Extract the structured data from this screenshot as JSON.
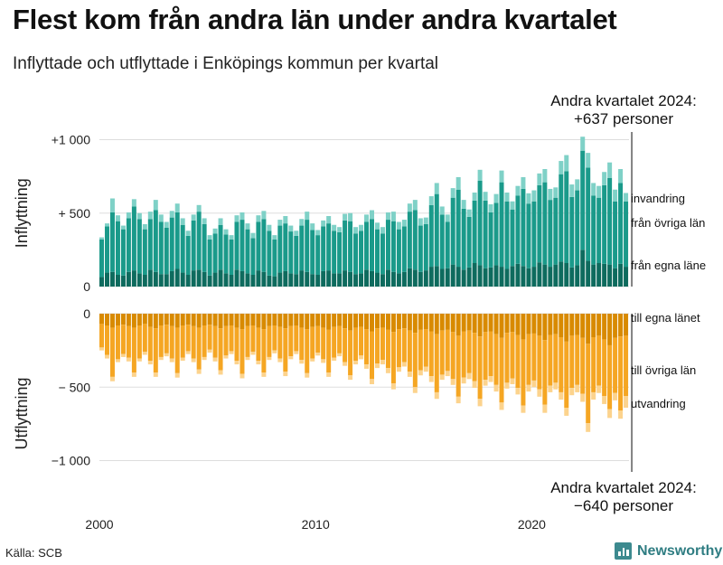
{
  "title": "Flest kom från andra län under andra kvartalet",
  "subtitle": "Inflyttade och utflyttade i Enköpings kommun per kvartal",
  "source": "Källa: SCB",
  "brand": "Newsworthy",
  "colors": {
    "in_egna": "#0e6b5e",
    "in_ovriga": "#1a9a8a",
    "in_invandring": "#7fd1c7",
    "ut_egna": "#d88a00",
    "ut_ovriga": "#f5a623",
    "ut_utvandring": "#fcd38d",
    "grid": "#dddddd",
    "brand": "#2f7d82"
  },
  "chart_data": [
    {
      "type": "bar",
      "stacked": true,
      "panel": "top",
      "ylabel": "Inflyttning",
      "ylim": [
        0,
        1020
      ],
      "yticks": [
        0,
        500,
        1000
      ],
      "ytick_labels": [
        "0",
        "+  500",
        "+1 000"
      ],
      "xticks": [
        2000,
        2010,
        2020
      ],
      "xtick_labels": [
        "2000",
        "2010",
        "2020"
      ],
      "period": "2000 Q1 – 2024 Q2 (98 kvartal)",
      "series": [
        {
          "name": "från egna läne",
          "values": [
            65,
            95,
            100,
            80,
            75,
            100,
            110,
            90,
            80,
            115,
            100,
            85,
            85,
            105,
            120,
            95,
            80,
            110,
            115,
            100,
            75,
            95,
            115,
            90,
            80,
            115,
            105,
            90,
            80,
            110,
            100,
            75,
            70,
            95,
            105,
            90,
            85,
            110,
            100,
            85,
            80,
            105,
            110,
            90,
            90,
            110,
            100,
            85,
            90,
            115,
            105,
            95,
            85,
            115,
            100,
            90,
            100,
            125,
            115,
            100,
            110,
            135,
            140,
            120,
            125,
            150,
            135,
            115,
            130,
            160,
            145,
            125,
            130,
            145,
            135,
            120,
            140,
            155,
            140,
            125,
            135,
            165,
            150,
            135,
            150,
            170,
            160,
            130,
            145,
            250,
            175,
            150,
            160,
            155,
            150,
            125,
            155,
            135
          ]
        },
        {
          "name": "från övriga län",
          "values": [
            255,
            315,
            405,
            365,
            315,
            365,
            435,
            370,
            310,
            345,
            420,
            355,
            315,
            365,
            385,
            325,
            265,
            340,
            395,
            325,
            245,
            265,
            305,
            265,
            240,
            325,
            350,
            300,
            250,
            330,
            360,
            305,
            250,
            320,
            325,
            285,
            260,
            305,
            355,
            300,
            270,
            305,
            320,
            290,
            280,
            340,
            345,
            275,
            290,
            325,
            355,
            295,
            275,
            340,
            345,
            300,
            310,
            385,
            405,
            315,
            315,
            420,
            490,
            370,
            315,
            455,
            525,
            415,
            345,
            425,
            575,
            460,
            375,
            425,
            575,
            460,
            385,
            465,
            525,
            440,
            445,
            525,
            560,
            455,
            455,
            595,
            625,
            480,
            510,
            675,
            635,
            470,
            445,
            535,
            590,
            455,
            550,
            445
          ]
        },
        {
          "name": "invandring",
          "values": [
            15,
            20,
            95,
            40,
            25,
            40,
            50,
            40,
            35,
            50,
            70,
            50,
            40,
            45,
            60,
            45,
            35,
            40,
            45,
            40,
            30,
            35,
            45,
            35,
            30,
            45,
            50,
            40,
            35,
            45,
            55,
            40,
            30,
            40,
            50,
            40,
            35,
            45,
            55,
            45,
            35,
            40,
            50,
            40,
            35,
            45,
            55,
            45,
            40,
            50,
            60,
            45,
            45,
            50,
            65,
            50,
            45,
            55,
            70,
            50,
            45,
            60,
            75,
            55,
            50,
            65,
            85,
            60,
            50,
            55,
            75,
            60,
            55,
            60,
            80,
            60,
            55,
            65,
            80,
            70,
            75,
            80,
            90,
            75,
            70,
            90,
            110,
            85,
            75,
            95,
            100,
            85,
            80,
            90,
            105,
            80,
            95,
            57
          ]
        }
      ],
      "annotation": {
        "line1": "Andra kvartalet 2024:",
        "line2": "+637 personer"
      },
      "legend": [
        "invandring",
        "från övriga län",
        "från egna läne"
      ]
    },
    {
      "type": "bar",
      "stacked": true,
      "panel": "bottom",
      "ylabel": "Utflyttning",
      "ylim": [
        -1000,
        0
      ],
      "yticks": [
        0,
        -500,
        -1000
      ],
      "ytick_labels": [
        "0",
        "−  500",
        "−1 000"
      ],
      "series": [
        {
          "name": "till egna länet",
          "values": [
            -70,
            -80,
            -95,
            -80,
            -75,
            -85,
            -95,
            -80,
            -70,
            -90,
            -100,
            -80,
            -75,
            -85,
            -95,
            -80,
            -75,
            -85,
            -95,
            -80,
            -75,
            -85,
            -100,
            -85,
            -80,
            -95,
            -105,
            -85,
            -80,
            -95,
            -105,
            -85,
            -80,
            -90,
            -100,
            -85,
            -80,
            -95,
            -105,
            -90,
            -85,
            -95,
            -110,
            -90,
            -85,
            -100,
            -115,
            -95,
            -90,
            -105,
            -120,
            -100,
            -95,
            -110,
            -125,
            -105,
            -100,
            -115,
            -130,
            -110,
            -105,
            -120,
            -140,
            -115,
            -110,
            -125,
            -150,
            -120,
            -115,
            -130,
            -155,
            -125,
            -120,
            -140,
            -165,
            -130,
            -125,
            -145,
            -175,
            -140,
            -135,
            -150,
            -180,
            -145,
            -140,
            -160,
            -190,
            -150,
            -145,
            -165,
            -205,
            -160,
            -150,
            -175,
            -215,
            -165,
            -155,
            -150
          ]
        },
        {
          "name": "till övriga län",
          "values": [
            -160,
            -200,
            -335,
            -230,
            -200,
            -215,
            -305,
            -225,
            -190,
            -230,
            -300,
            -215,
            -195,
            -220,
            -310,
            -220,
            -180,
            -220,
            -285,
            -215,
            -170,
            -215,
            -285,
            -200,
            -175,
            -225,
            -305,
            -210,
            -180,
            -225,
            -295,
            -210,
            -170,
            -215,
            -295,
            -205,
            -175,
            -220,
            -300,
            -215,
            -180,
            -215,
            -290,
            -210,
            -185,
            -230,
            -305,
            -225,
            -195,
            -240,
            -325,
            -240,
            -220,
            -260,
            -350,
            -260,
            -230,
            -280,
            -370,
            -275,
            -255,
            -305,
            -395,
            -300,
            -280,
            -320,
            -415,
            -315,
            -290,
            -330,
            -425,
            -325,
            -305,
            -345,
            -440,
            -340,
            -315,
            -360,
            -450,
            -345,
            -320,
            -365,
            -440,
            -345,
            -330,
            -375,
            -450,
            -355,
            -340,
            -380,
            -540,
            -375,
            -340,
            -385,
            -435,
            -375,
            -505,
            -410
          ]
        },
        {
          "name": "utvandring",
          "values": [
            -20,
            -25,
            -30,
            -20,
            -20,
            -25,
            -30,
            -20,
            -20,
            -25,
            -30,
            -20,
            -20,
            -25,
            -30,
            -20,
            -20,
            -25,
            -30,
            -20,
            -20,
            -25,
            -30,
            -20,
            -20,
            -25,
            -30,
            -20,
            -20,
            -25,
            -30,
            -20,
            -20,
            -25,
            -30,
            -20,
            -20,
            -25,
            -30,
            -20,
            -20,
            -25,
            -30,
            -20,
            -20,
            -25,
            -30,
            -25,
            -25,
            -30,
            -35,
            -30,
            -30,
            -35,
            -40,
            -30,
            -30,
            -35,
            -40,
            -35,
            -35,
            -40,
            -45,
            -35,
            -35,
            -40,
            -45,
            -40,
            -40,
            -45,
            -50,
            -40,
            -40,
            -45,
            -50,
            -40,
            -40,
            -45,
            -50,
            -45,
            -45,
            -50,
            -55,
            -45,
            -45,
            -50,
            -55,
            -50,
            -50,
            -55,
            -60,
            -50,
            -50,
            -55,
            -60,
            -50,
            -55,
            -80
          ]
        }
      ],
      "annotation": {
        "line1": "Andra kvartalet 2024:",
        "line2": "−640 personer"
      },
      "legend": [
        "till egna länet",
        "till övriga län",
        "utvandring"
      ]
    }
  ]
}
